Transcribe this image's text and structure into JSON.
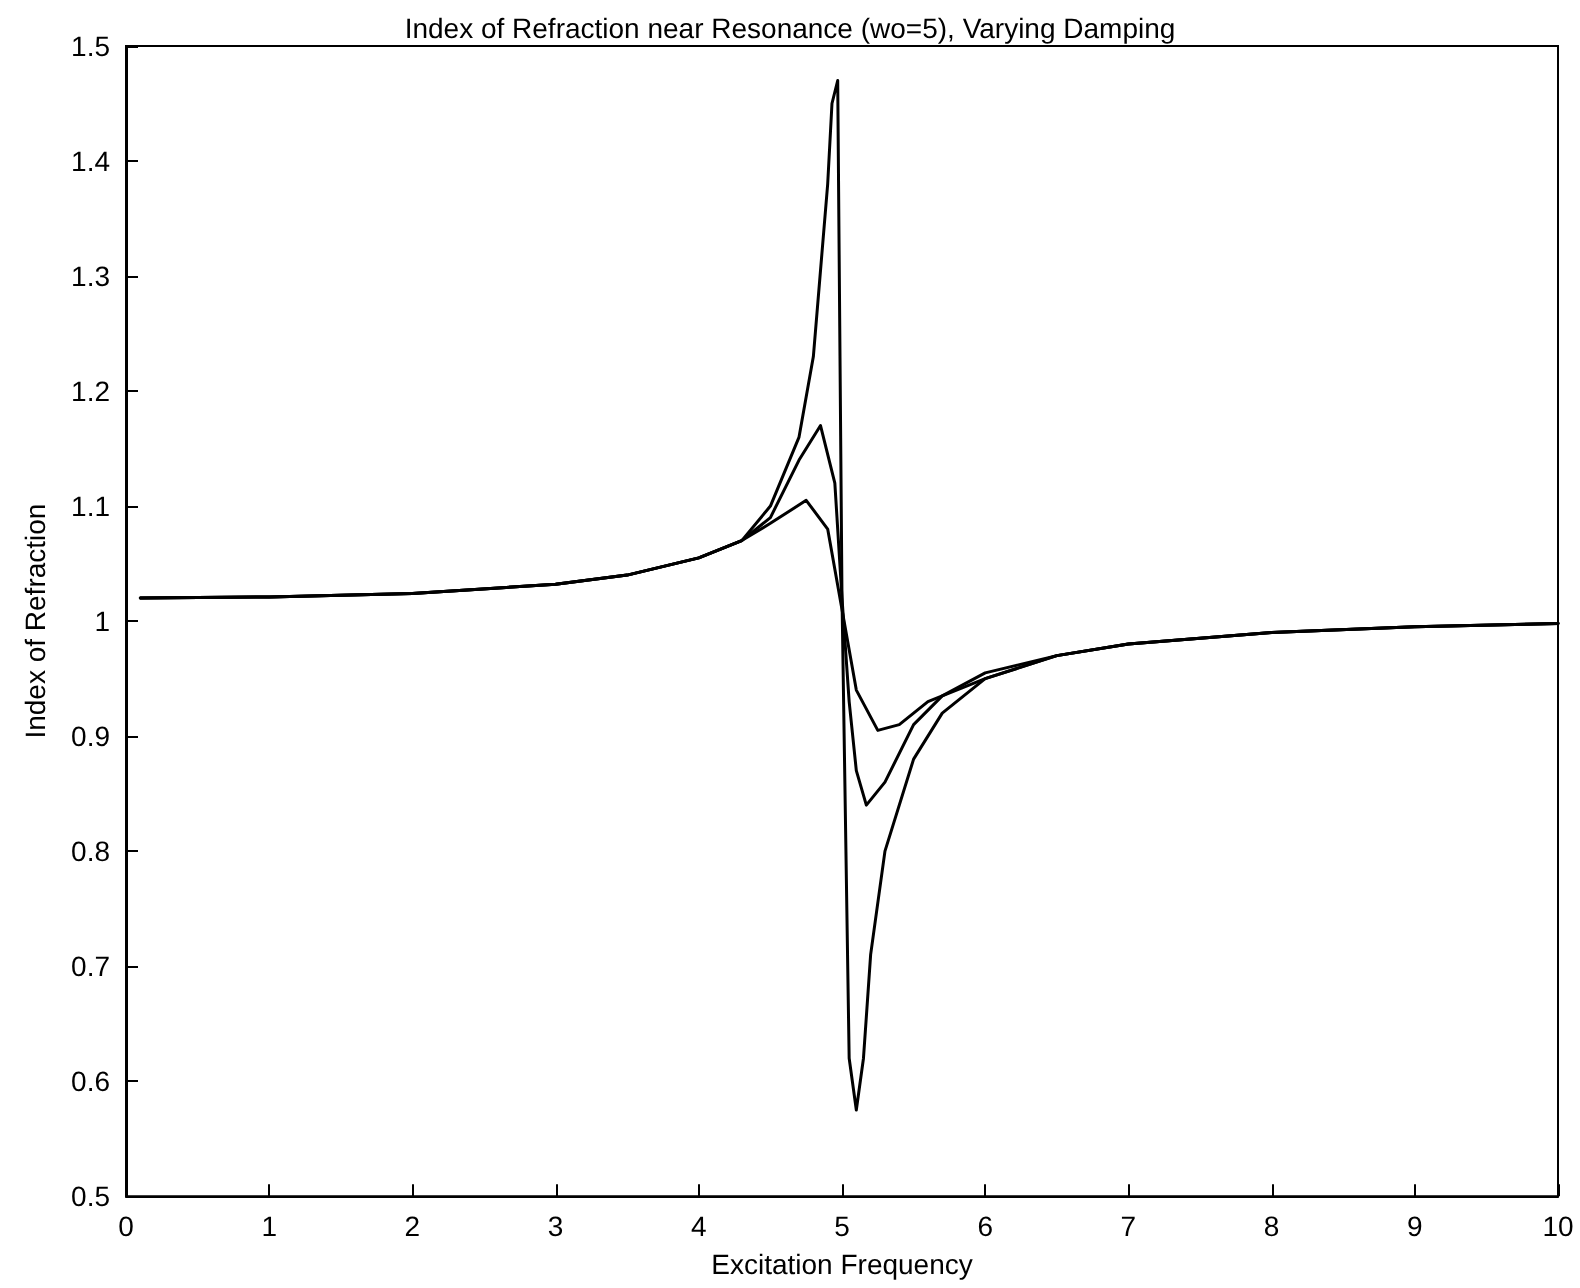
{
  "chart_data": {
    "type": "line",
    "title": "Index of Refraction near Resonance (wo=5), Varying Damping",
    "xlabel": "Excitation Frequency",
    "ylabel": "Index of Refraction",
    "xlim": [
      0,
      10
    ],
    "ylim": [
      0.5,
      1.5
    ],
    "xticks": [
      0,
      1,
      2,
      3,
      4,
      5,
      6,
      7,
      8,
      9,
      10
    ],
    "yticks": [
      0.5,
      0.6,
      0.7,
      0.8,
      0.9,
      1,
      1.1,
      1.2,
      1.3,
      1.4,
      1.5
    ],
    "grid": false,
    "marker": "none",
    "line_style": "solid",
    "series": [
      {
        "color": "#000000",
        "x": [
          0.1,
          1,
          2,
          3,
          3.5,
          4,
          4.3,
          4.5,
          4.7,
          4.8,
          4.9,
          4.93,
          4.97,
          5.0,
          5.05,
          5.1,
          5.15,
          5.2,
          5.3,
          5.5,
          5.7,
          6,
          6.5,
          7,
          8,
          9,
          10
        ],
        "values": [
          1.02,
          1.021,
          1.024,
          1.032,
          1.04,
          1.055,
          1.07,
          1.1,
          1.16,
          1.23,
          1.38,
          1.45,
          1.47,
          1.02,
          0.62,
          0.575,
          0.62,
          0.71,
          0.8,
          0.88,
          0.92,
          0.95,
          0.97,
          0.98,
          0.99,
          0.995,
          0.998
        ]
      },
      {
        "color": "#000000",
        "x": [
          0.1,
          1,
          2,
          3,
          3.5,
          4,
          4.3,
          4.5,
          4.7,
          4.85,
          4.95,
          5.0,
          5.05,
          5.1,
          5.17,
          5.3,
          5.5,
          5.7,
          6,
          6.5,
          7,
          8,
          9,
          10
        ],
        "values": [
          1.02,
          1.021,
          1.024,
          1.032,
          1.04,
          1.055,
          1.07,
          1.09,
          1.14,
          1.17,
          1.12,
          1.02,
          0.93,
          0.87,
          0.84,
          0.86,
          0.91,
          0.935,
          0.955,
          0.97,
          0.98,
          0.99,
          0.995,
          0.998
        ]
      },
      {
        "color": "#000000",
        "x": [
          0.1,
          1,
          2,
          3,
          3.5,
          4,
          4.3,
          4.5,
          4.75,
          4.9,
          5.0,
          5.1,
          5.25,
          5.4,
          5.6,
          6,
          6.5,
          7,
          8,
          9,
          10
        ],
        "values": [
          1.02,
          1.021,
          1.024,
          1.032,
          1.04,
          1.055,
          1.07,
          1.085,
          1.105,
          1.08,
          1.01,
          0.94,
          0.905,
          0.91,
          0.93,
          0.95,
          0.97,
          0.98,
          0.99,
          0.995,
          0.998
        ]
      }
    ]
  }
}
